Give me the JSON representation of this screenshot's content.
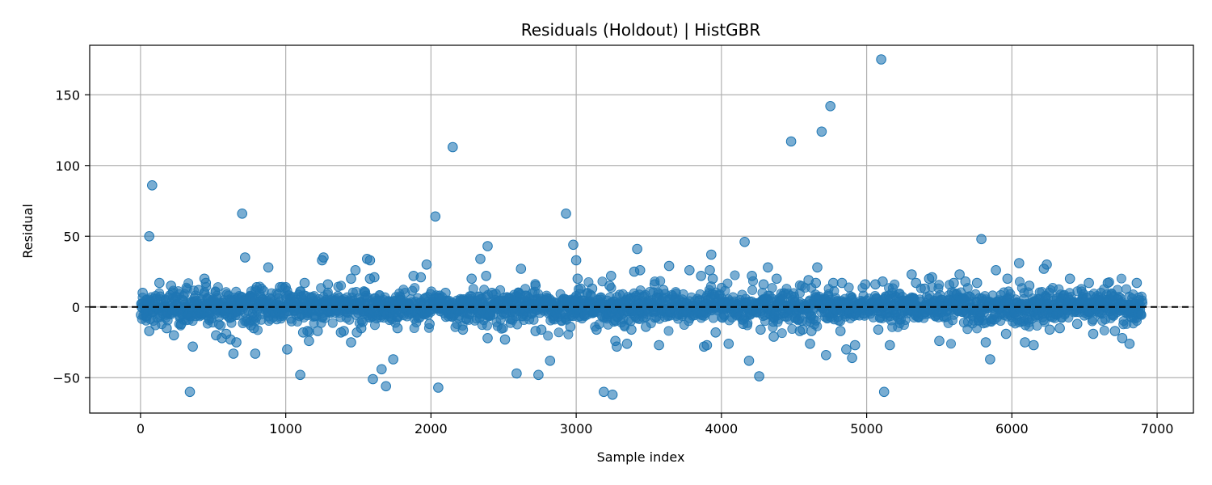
{
  "chart_data": {
    "type": "scatter",
    "title": "Residuals (Holdout) | HistGBR",
    "xlabel": "Sample index",
    "ylabel": "Residual",
    "xlim": [
      -350,
      7250
    ],
    "ylim": [
      -75,
      185
    ],
    "xticks": [
      0,
      1000,
      2000,
      3000,
      4000,
      5000,
      6000,
      7000
    ],
    "yticks": [
      -50,
      0,
      50,
      100,
      150
    ],
    "xtick_labels": [
      "0",
      "1000",
      "2000",
      "3000",
      "4000",
      "5000",
      "6000",
      "7000"
    ],
    "ytick_labels": [
      "−50",
      "0",
      "50",
      "100",
      "150"
    ],
    "grid": true,
    "reference_line": {
      "y": 0,
      "style": "dashed",
      "color": "#000000"
    },
    "marker_color": "#1f77b4",
    "marker_alpha": 0.6,
    "n_points_approx": 6900,
    "bulk_spread": {
      "x_range": [
        0,
        6900
      ],
      "typical_abs_residual": 6
    },
    "points": [
      [
        15,
        10
      ],
      [
        40,
        5
      ],
      [
        60,
        -17
      ],
      [
        60,
        50
      ],
      [
        80,
        86
      ],
      [
        130,
        17
      ],
      [
        180,
        -15
      ],
      [
        210,
        15
      ],
      [
        230,
        -20
      ],
      [
        280,
        -12
      ],
      [
        340,
        -60
      ],
      [
        360,
        -28
      ],
      [
        400,
        12
      ],
      [
        440,
        20
      ],
      [
        450,
        17
      ],
      [
        520,
        -20
      ],
      [
        560,
        -22
      ],
      [
        590,
        -19
      ],
      [
        620,
        -23
      ],
      [
        640,
        -33
      ],
      [
        660,
        -25
      ],
      [
        700,
        66
      ],
      [
        720,
        35
      ],
      [
        760,
        -13
      ],
      [
        780,
        -15
      ],
      [
        790,
        -33
      ],
      [
        800,
        14
      ],
      [
        880,
        28
      ],
      [
        960,
        14
      ],
      [
        1000,
        14
      ],
      [
        1010,
        -30
      ],
      [
        1100,
        -48
      ],
      [
        1120,
        -18
      ],
      [
        1130,
        17
      ],
      [
        1150,
        -17
      ],
      [
        1160,
        -24
      ],
      [
        1220,
        -17
      ],
      [
        1250,
        33
      ],
      [
        1260,
        35
      ],
      [
        1290,
        16
      ],
      [
        1380,
        -18
      ],
      [
        1400,
        -17
      ],
      [
        1450,
        -25
      ],
      [
        1450,
        20
      ],
      [
        1480,
        26
      ],
      [
        1490,
        -18
      ],
      [
        1520,
        -15
      ],
      [
        1560,
        34
      ],
      [
        1580,
        33
      ],
      [
        1580,
        20
      ],
      [
        1600,
        -51
      ],
      [
        1610,
        21
      ],
      [
        1660,
        -44
      ],
      [
        1690,
        -56
      ],
      [
        1740,
        -37
      ],
      [
        1770,
        -15
      ],
      [
        1880,
        22
      ],
      [
        1930,
        21
      ],
      [
        1970,
        30
      ],
      [
        1990,
        -12
      ],
      [
        2030,
        64
      ],
      [
        2050,
        -57
      ],
      [
        2060,
        8
      ],
      [
        2100,
        10
      ],
      [
        2150,
        113
      ],
      [
        2220,
        -16
      ],
      [
        2280,
        20
      ],
      [
        2340,
        34
      ],
      [
        2380,
        22
      ],
      [
        2390,
        43
      ],
      [
        2390,
        -22
      ],
      [
        2420,
        10
      ],
      [
        2510,
        -23
      ],
      [
        2590,
        -47
      ],
      [
        2620,
        27
      ],
      [
        2650,
        8
      ],
      [
        2720,
        15
      ],
      [
        2720,
        -17
      ],
      [
        2740,
        -48
      ],
      [
        2760,
        -16
      ],
      [
        2820,
        -38
      ],
      [
        2930,
        66
      ],
      [
        2960,
        -14
      ],
      [
        2980,
        44
      ],
      [
        3000,
        33
      ],
      [
        3010,
        20
      ],
      [
        3030,
        13
      ],
      [
        3110,
        13
      ],
      [
        3140,
        -16
      ],
      [
        3190,
        -60
      ],
      [
        3230,
        15
      ],
      [
        3240,
        22
      ],
      [
        3250,
        -62
      ],
      [
        3270,
        -24
      ],
      [
        3280,
        -28
      ],
      [
        3350,
        -26
      ],
      [
        3380,
        -16
      ],
      [
        3400,
        25
      ],
      [
        3420,
        41
      ],
      [
        3440,
        26
      ],
      [
        3480,
        -14
      ],
      [
        3540,
        16
      ],
      [
        3570,
        -27
      ],
      [
        3600,
        12
      ],
      [
        3640,
        29
      ],
      [
        3780,
        26
      ],
      [
        3860,
        22
      ],
      [
        3880,
        -28
      ],
      [
        3900,
        -27
      ],
      [
        3920,
        26
      ],
      [
        3930,
        37
      ],
      [
        3940,
        20
      ],
      [
        3960,
        -18
      ],
      [
        4050,
        -26
      ],
      [
        4150,
        -12
      ],
      [
        4160,
        46
      ],
      [
        4190,
        -38
      ],
      [
        4210,
        22
      ],
      [
        4260,
        -49
      ],
      [
        4270,
        -16
      ],
      [
        4290,
        16
      ],
      [
        4320,
        28
      ],
      [
        4360,
        -21
      ],
      [
        4380,
        20
      ],
      [
        4480,
        117
      ],
      [
        4540,
        -17
      ],
      [
        4560,
        -16
      ],
      [
        4600,
        19
      ],
      [
        4610,
        -26
      ],
      [
        4620,
        -17
      ],
      [
        4650,
        17
      ],
      [
        4660,
        28
      ],
      [
        4690,
        124
      ],
      [
        4720,
        -34
      ],
      [
        4750,
        142
      ],
      [
        4770,
        17
      ],
      [
        4820,
        -17
      ],
      [
        4830,
        17
      ],
      [
        4860,
        -30
      ],
      [
        4900,
        -36
      ],
      [
        4920,
        -27
      ],
      [
        4990,
        16
      ],
      [
        5060,
        16
      ],
      [
        5080,
        -16
      ],
      [
        5100,
        175
      ],
      [
        5110,
        18
      ],
      [
        5120,
        -60
      ],
      [
        5160,
        -27
      ],
      [
        5310,
        23
      ],
      [
        5340,
        17
      ],
      [
        5400,
        13
      ],
      [
        5430,
        20
      ],
      [
        5450,
        21
      ],
      [
        5500,
        -24
      ],
      [
        5600,
        17
      ],
      [
        5640,
        23
      ],
      [
        5680,
        18
      ],
      [
        5760,
        17
      ],
      [
        5790,
        48
      ],
      [
        5820,
        -25
      ],
      [
        5850,
        -37
      ],
      [
        5890,
        26
      ],
      [
        5960,
        -19
      ],
      [
        5970,
        20
      ],
      [
        6050,
        31
      ],
      [
        6090,
        -25
      ],
      [
        6120,
        15
      ],
      [
        6150,
        -27
      ],
      [
        6220,
        27
      ],
      [
        6240,
        30
      ],
      [
        6260,
        -16
      ],
      [
        6330,
        -15
      ],
      [
        6400,
        20
      ],
      [
        6450,
        -12
      ],
      [
        6530,
        17
      ],
      [
        6560,
        -19
      ],
      [
        6660,
        17
      ],
      [
        6710,
        -17
      ],
      [
        6760,
        -22
      ],
      [
        6810,
        -26
      ],
      [
        6860,
        17
      ]
    ]
  }
}
